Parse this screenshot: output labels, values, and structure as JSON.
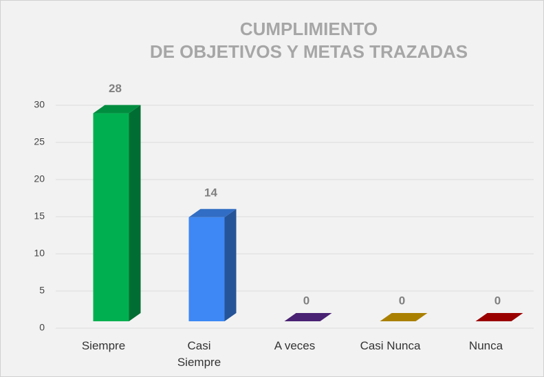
{
  "chart_data": {
    "type": "bar3d",
    "title": [
      "CUMPLIMIENTO",
      "DE OBJETIVOS Y METAS TRAZADAS"
    ],
    "categories": [
      "Siempre",
      "Casi Siempre",
      "A veces",
      "Casi Nunca",
      "Nunca"
    ],
    "values": [
      28,
      14,
      0,
      0,
      0
    ],
    "colors": [
      "#00b050",
      "#3d88f5",
      "#5b2a90",
      "#d4a000",
      "#c00000"
    ],
    "ylim": [
      0,
      30
    ],
    "yticks": [
      0,
      5,
      10,
      15,
      20,
      25,
      30
    ],
    "grid": true
  }
}
